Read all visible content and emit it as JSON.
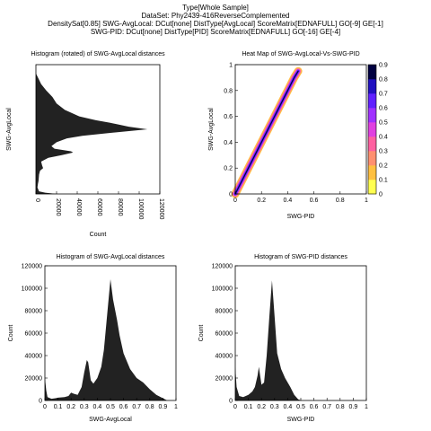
{
  "header": {
    "line1": "Type[Whole Sample]",
    "line2": "DataSet: Phy2439-416ReverseComplemented",
    "line3": "DensitySat[0.85] SWG-AvgLocal: DCut[none] DistType[AvgLocal] ScoreMatrix[EDNAFULL] GO[-9] GE[-1]",
    "line4": "SWG-PID: DCut[none] DistType[PID] ScoreMatrix[EDNAFULL] GO[-16] GE[-4]"
  },
  "chart_data": [
    {
      "type": "area",
      "orientation": "rotated",
      "title": "Histogram (rotated) of SWG-AvgLocal distances",
      "xlabel": "Count",
      "ylabel": "SWG-AvgLocal",
      "xlim": [
        0,
        120000
      ],
      "ylim": [
        0,
        1
      ],
      "xticks": [
        "0",
        "20000",
        "40000",
        "60000",
        "80000",
        "100000",
        "120000"
      ],
      "yticks": [],
      "fill_color": "#222222",
      "points": [
        {
          "y": 0.0,
          "x": 20000
        },
        {
          "y": 0.01,
          "x": 9000
        },
        {
          "y": 0.02,
          "x": 3000
        },
        {
          "y": 0.05,
          "x": 1500
        },
        {
          "y": 0.08,
          "x": 2000
        },
        {
          "y": 0.1,
          "x": 2500
        },
        {
          "y": 0.15,
          "x": 3000
        },
        {
          "y": 0.18,
          "x": 4000
        },
        {
          "y": 0.2,
          "x": 7000
        },
        {
          "y": 0.22,
          "x": 6000
        },
        {
          "y": 0.25,
          "x": 5000
        },
        {
          "y": 0.28,
          "x": 12000
        },
        {
          "y": 0.3,
          "x": 25000
        },
        {
          "y": 0.32,
          "x": 36000
        },
        {
          "y": 0.33,
          "x": 34000
        },
        {
          "y": 0.35,
          "x": 18000
        },
        {
          "y": 0.37,
          "x": 15000
        },
        {
          "y": 0.4,
          "x": 20000
        },
        {
          "y": 0.43,
          "x": 30000
        },
        {
          "y": 0.45,
          "x": 45000
        },
        {
          "y": 0.47,
          "x": 70000
        },
        {
          "y": 0.5,
          "x": 108000
        },
        {
          "y": 0.52,
          "x": 90000
        },
        {
          "y": 0.55,
          "x": 72000
        },
        {
          "y": 0.57,
          "x": 58000
        },
        {
          "y": 0.6,
          "x": 42000
        },
        {
          "y": 0.65,
          "x": 28000
        },
        {
          "y": 0.7,
          "x": 20000
        },
        {
          "y": 0.75,
          "x": 16000
        },
        {
          "y": 0.8,
          "x": 10000
        },
        {
          "y": 0.85,
          "x": 5000
        },
        {
          "y": 0.9,
          "x": 2000
        },
        {
          "y": 0.93,
          "x": 200
        }
      ]
    },
    {
      "type": "heatmap",
      "title": "Heat Map of SWG-AvgLocal-Vs-SWG-PID",
      "xlabel": "SWG-PID",
      "ylabel": "SWG-AvgLocal",
      "xlim": [
        0,
        1
      ],
      "ylim": [
        0,
        1
      ],
      "xticks": [
        "0",
        "0.2",
        "0.4",
        "0.6",
        "0.8",
        "1"
      ],
      "yticks": [
        "0",
        "0.2",
        "0.4",
        "0.6",
        "0.8",
        "1"
      ],
      "colorbar": {
        "range": [
          0,
          0.9
        ],
        "ticks": [
          "0",
          "0.1",
          "0.2",
          "0.3",
          "0.4",
          "0.5",
          "0.6",
          "0.7",
          "0.8",
          "0.9"
        ],
        "colors": [
          "#ffff50",
          "#ffc040",
          "#ff9070",
          "#ff60a0",
          "#e040e0",
          "#a030ff",
          "#6020ff",
          "#2010c0",
          "#000040"
        ]
      },
      "ridge": [
        {
          "x": 0.0,
          "y": 0.0
        },
        {
          "x": 0.05,
          "y": 0.1
        },
        {
          "x": 0.1,
          "y": 0.2
        },
        {
          "x": 0.15,
          "y": 0.3
        },
        {
          "x": 0.2,
          "y": 0.4
        },
        {
          "x": 0.25,
          "y": 0.5
        },
        {
          "x": 0.3,
          "y": 0.6
        },
        {
          "x": 0.35,
          "y": 0.7
        },
        {
          "x": 0.4,
          "y": 0.8
        },
        {
          "x": 0.45,
          "y": 0.9
        },
        {
          "x": 0.48,
          "y": 0.95
        }
      ]
    },
    {
      "type": "area",
      "title": "Histogram of SWG-AvgLocal distances",
      "xlabel": "SWG-AvgLocal",
      "ylabel": "Count",
      "xlim": [
        0,
        1
      ],
      "ylim": [
        0,
        120000
      ],
      "xticks": [
        "0",
        "0.1",
        "0.2",
        "0.3",
        "0.4",
        "0.5",
        "0.6",
        "0.7",
        "0.8",
        "0.9",
        "1"
      ],
      "yticks": [
        "0",
        "20000",
        "40000",
        "60000",
        "80000",
        "100000",
        "120000"
      ],
      "fill_color": "#222222",
      "points": [
        {
          "x": 0.0,
          "y": 20000
        },
        {
          "x": 0.01,
          "y": 9000
        },
        {
          "x": 0.02,
          "y": 3000
        },
        {
          "x": 0.05,
          "y": 1500
        },
        {
          "x": 0.08,
          "y": 2000
        },
        {
          "x": 0.1,
          "y": 2500
        },
        {
          "x": 0.15,
          "y": 3000
        },
        {
          "x": 0.18,
          "y": 4000
        },
        {
          "x": 0.2,
          "y": 7000
        },
        {
          "x": 0.22,
          "y": 6000
        },
        {
          "x": 0.25,
          "y": 5000
        },
        {
          "x": 0.28,
          "y": 12000
        },
        {
          "x": 0.3,
          "y": 25000
        },
        {
          "x": 0.32,
          "y": 36000
        },
        {
          "x": 0.33,
          "y": 34000
        },
        {
          "x": 0.35,
          "y": 18000
        },
        {
          "x": 0.37,
          "y": 15000
        },
        {
          "x": 0.4,
          "y": 20000
        },
        {
          "x": 0.43,
          "y": 30000
        },
        {
          "x": 0.45,
          "y": 45000
        },
        {
          "x": 0.47,
          "y": 70000
        },
        {
          "x": 0.5,
          "y": 108000
        },
        {
          "x": 0.52,
          "y": 90000
        },
        {
          "x": 0.55,
          "y": 72000
        },
        {
          "x": 0.57,
          "y": 58000
        },
        {
          "x": 0.6,
          "y": 42000
        },
        {
          "x": 0.65,
          "y": 28000
        },
        {
          "x": 0.7,
          "y": 20000
        },
        {
          "x": 0.75,
          "y": 16000
        },
        {
          "x": 0.8,
          "y": 10000
        },
        {
          "x": 0.85,
          "y": 5000
        },
        {
          "x": 0.9,
          "y": 2000
        },
        {
          "x": 0.93,
          "y": 200
        }
      ]
    },
    {
      "type": "area",
      "title": "Histogram of SWG-PID distances",
      "xlabel": "SWG-PID",
      "ylabel": "Count",
      "xlim": [
        0,
        1
      ],
      "ylim": [
        0,
        120000
      ],
      "xticks": [
        "0",
        "0.1",
        "0.2",
        "0.3",
        "0.4",
        "0.5",
        "0.6",
        "0.7",
        "0.8",
        "0.9",
        "1"
      ],
      "yticks": [
        "0",
        "20000",
        "40000",
        "60000",
        "80000",
        "100000",
        "120000"
      ],
      "fill_color": "#222222",
      "points": [
        {
          "x": 0.0,
          "y": 30000
        },
        {
          "x": 0.01,
          "y": 12000
        },
        {
          "x": 0.03,
          "y": 4000
        },
        {
          "x": 0.06,
          "y": 3000
        },
        {
          "x": 0.1,
          "y": 5000
        },
        {
          "x": 0.13,
          "y": 8000
        },
        {
          "x": 0.15,
          "y": 12000
        },
        {
          "x": 0.17,
          "y": 22000
        },
        {
          "x": 0.18,
          "y": 30000
        },
        {
          "x": 0.2,
          "y": 14000
        },
        {
          "x": 0.22,
          "y": 16000
        },
        {
          "x": 0.24,
          "y": 40000
        },
        {
          "x": 0.26,
          "y": 75000
        },
        {
          "x": 0.28,
          "y": 107000
        },
        {
          "x": 0.3,
          "y": 75000
        },
        {
          "x": 0.32,
          "y": 42000
        },
        {
          "x": 0.35,
          "y": 28000
        },
        {
          "x": 0.38,
          "y": 20000
        },
        {
          "x": 0.42,
          "y": 12000
        },
        {
          "x": 0.45,
          "y": 5000
        },
        {
          "x": 0.48,
          "y": 1000
        },
        {
          "x": 0.5,
          "y": 200
        }
      ]
    }
  ]
}
